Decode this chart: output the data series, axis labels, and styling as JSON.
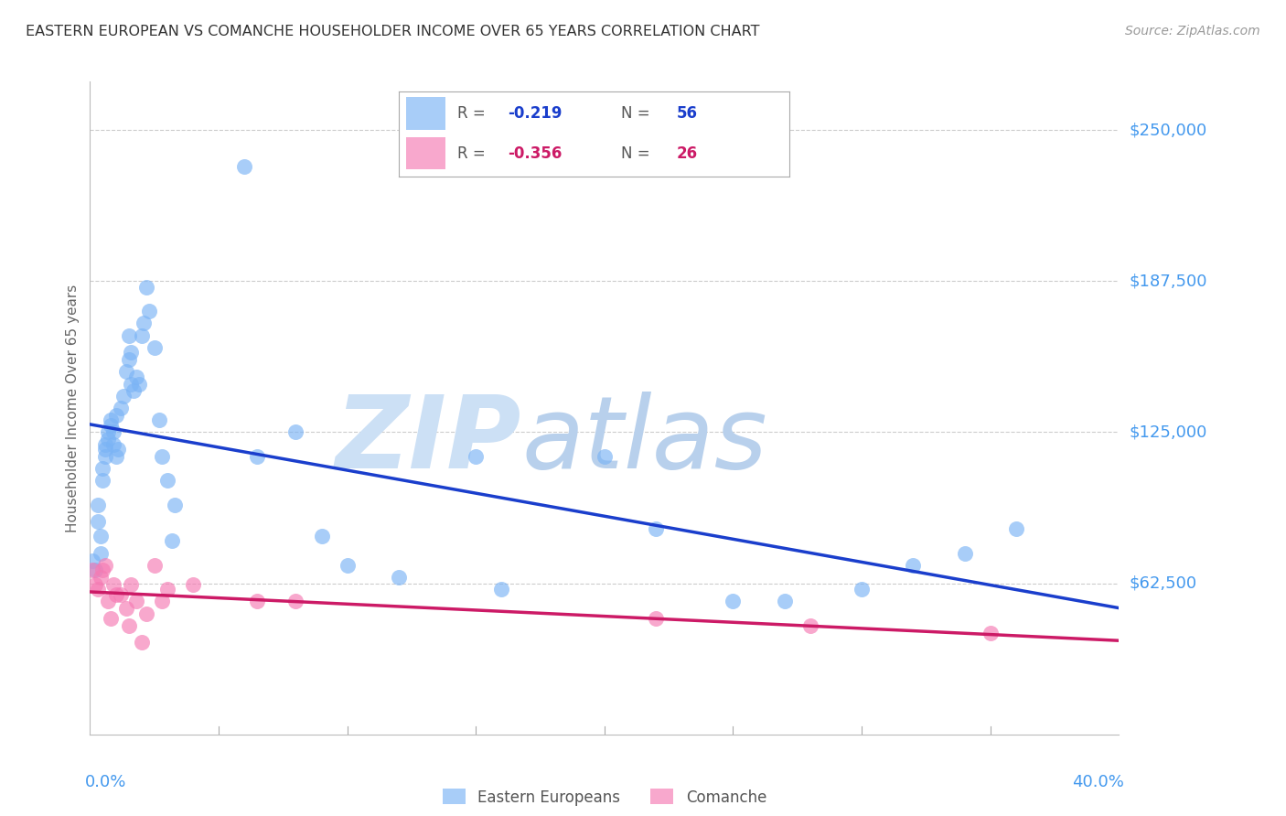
{
  "title": "EASTERN EUROPEAN VS COMANCHE HOUSEHOLDER INCOME OVER 65 YEARS CORRELATION CHART",
  "source": "Source: ZipAtlas.com",
  "ylabel": "Householder Income Over 65 years",
  "xlim": [
    0.0,
    0.4
  ],
  "ylim": [
    0,
    270000
  ],
  "ytick_vals": [
    62500,
    125000,
    187500,
    250000
  ],
  "ytick_labels": [
    "$62,500",
    "$125,000",
    "$187,500",
    "$250,000"
  ],
  "blue_color": "#7ab3f5",
  "pink_color": "#f57ab3",
  "line_blue": "#1a3ecc",
  "line_pink": "#cc1a66",
  "label_color": "#4499ee",
  "title_color": "#333333",
  "source_color": "#999999",
  "grid_color": "#cccccc",
  "bg_color": "#ffffff",
  "eastern_europeans_x": [
    0.001,
    0.002,
    0.003,
    0.003,
    0.004,
    0.004,
    0.005,
    0.005,
    0.006,
    0.006,
    0.006,
    0.007,
    0.007,
    0.008,
    0.008,
    0.009,
    0.009,
    0.01,
    0.01,
    0.011,
    0.012,
    0.013,
    0.014,
    0.015,
    0.015,
    0.016,
    0.016,
    0.017,
    0.018,
    0.019,
    0.02,
    0.021,
    0.022,
    0.023,
    0.025,
    0.027,
    0.028,
    0.03,
    0.032,
    0.033,
    0.06,
    0.065,
    0.08,
    0.09,
    0.1,
    0.12,
    0.15,
    0.16,
    0.2,
    0.22,
    0.25,
    0.27,
    0.3,
    0.32,
    0.34,
    0.36
  ],
  "eastern_europeans_y": [
    72000,
    68000,
    95000,
    88000,
    75000,
    82000,
    110000,
    105000,
    120000,
    118000,
    115000,
    125000,
    122000,
    130000,
    128000,
    125000,
    120000,
    132000,
    115000,
    118000,
    135000,
    140000,
    150000,
    165000,
    155000,
    158000,
    145000,
    142000,
    148000,
    145000,
    165000,
    170000,
    185000,
    175000,
    160000,
    130000,
    115000,
    105000,
    80000,
    95000,
    235000,
    115000,
    125000,
    82000,
    70000,
    65000,
    115000,
    60000,
    115000,
    85000,
    55000,
    55000,
    60000,
    70000,
    75000,
    85000
  ],
  "comanche_x": [
    0.001,
    0.002,
    0.003,
    0.004,
    0.005,
    0.006,
    0.007,
    0.008,
    0.009,
    0.01,
    0.012,
    0.014,
    0.015,
    0.016,
    0.018,
    0.02,
    0.022,
    0.025,
    0.028,
    0.03,
    0.04,
    0.065,
    0.08,
    0.22,
    0.28,
    0.35
  ],
  "comanche_y": [
    68000,
    62000,
    60000,
    65000,
    68000,
    70000,
    55000,
    48000,
    62000,
    58000,
    58000,
    52000,
    45000,
    62000,
    55000,
    38000,
    50000,
    70000,
    55000,
    60000,
    62000,
    55000,
    55000,
    48000,
    45000,
    42000
  ]
}
